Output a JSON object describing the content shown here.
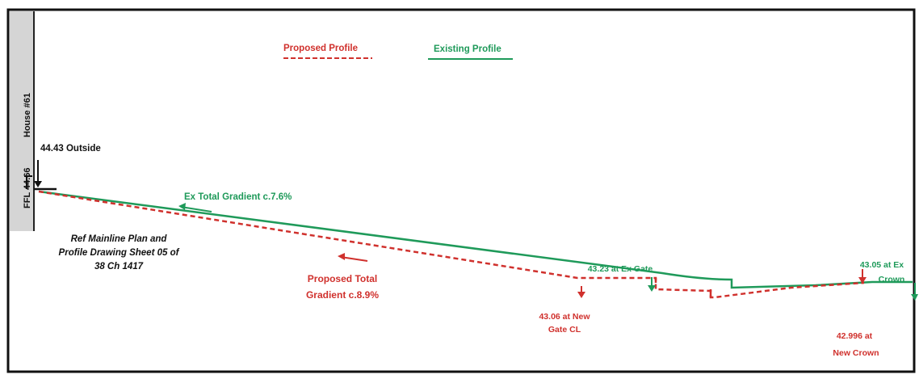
{
  "legend": {
    "proposed_label": "Proposed Profile",
    "existing_label": "Existing Profile"
  },
  "house": {
    "name": "House #61",
    "ffl": "FFL 44.66"
  },
  "labels": {
    "outside_level": "44.43 Outside",
    "ex_gradient_prefix": "Ex ",
    "ex_gradient_text": "Total Gradient c.7.6%",
    "ref_line1": "Ref Mainline Plan and",
    "ref_line2": "Profile Drawing Sheet 05 of",
    "ref_line3": "38 Ch 1417",
    "prop_gradient_line1": "Proposed Total",
    "prop_gradient_line2": "Gradient c.8.9%",
    "ex_gate": "43.23 at Ex Gate",
    "new_gate_line1": "43.06 at New",
    "new_gate_line2": "Gate CL",
    "ex_crown_line1": "43.05 at Ex",
    "ex_crown_line2": "Crown",
    "new_crown_line1": "42.996 at",
    "new_crown_line2": "New Crown"
  },
  "colors": {
    "proposed": "#d0312d",
    "existing": "#1f9a5a",
    "house_fill": "#d5d5d5",
    "frame": "#111111"
  }
}
